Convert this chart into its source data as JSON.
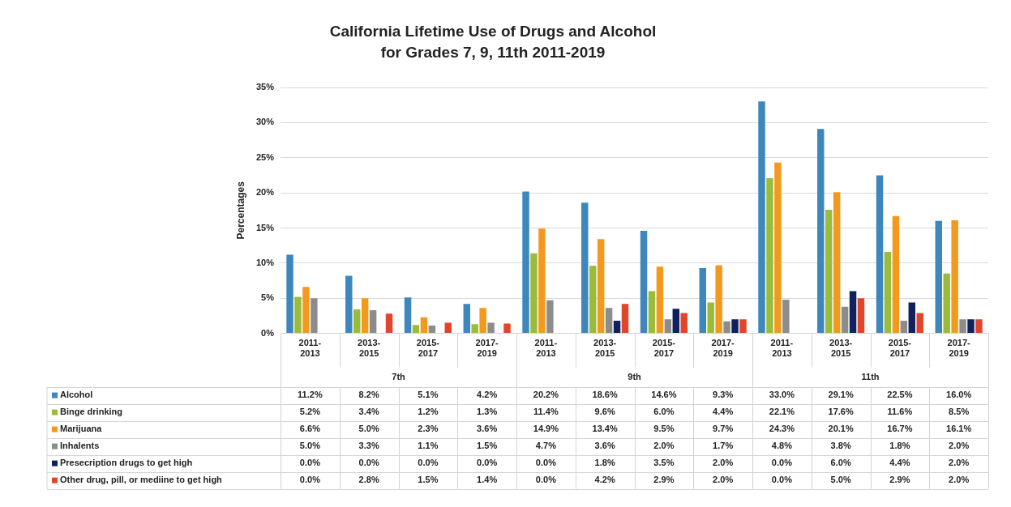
{
  "chart_data": {
    "type": "bar",
    "title": "California Lifetime Use of Drugs and Alcohol for Grades 7, 9, 11th 2011-2019",
    "ylabel": "Percentages",
    "categories": [
      "2011-2013",
      "2013-2015",
      "2015-2017",
      "2017-2019",
      "2011-2013",
      "2013-2015",
      "2015-2017",
      "2017-2019",
      "2011-2013",
      "2013-2015",
      "2015-2017",
      "2017-2019"
    ],
    "annotations": [
      "7th",
      "9th",
      "11th"
    ],
    "series": [
      {
        "name": "Alcohol",
        "color": "#3d87bd",
        "values": [
          11.2,
          8.2,
          5.1,
          4.2,
          20.2,
          18.6,
          14.6,
          9.3,
          33.0,
          29.1,
          22.5,
          16.0
        ],
        "value_labels": [
          "11.2%",
          "8.2%",
          "5.1%",
          "4.2%",
          "20.2%",
          "18.6%",
          "14.6%",
          "9.3%",
          "33.0%",
          "29.1%",
          "22.5%",
          "16.0%"
        ]
      },
      {
        "name": "Binge drinking",
        "color": "#9bbb3b",
        "values": [
          5.2,
          3.4,
          1.2,
          1.3,
          11.4,
          9.6,
          6.0,
          4.4,
          22.1,
          17.6,
          11.6,
          8.5
        ],
        "value_labels": [
          "5.2%",
          "3.4%",
          "1.2%",
          "1.3%",
          "11.4%",
          "9.6%",
          "6.0%",
          "4.4%",
          "22.1%",
          "17.6%",
          "11.6%",
          "8.5%"
        ]
      },
      {
        "name": "Marijuana",
        "color": "#f39a1e",
        "values": [
          6.6,
          5.0,
          2.3,
          3.6,
          14.9,
          13.4,
          9.5,
          9.7,
          24.3,
          20.1,
          16.7,
          16.1
        ],
        "value_labels": [
          "6.6%",
          "5.0%",
          "2.3%",
          "3.6%",
          "14.9%",
          "13.4%",
          "9.5%",
          "9.7%",
          "24.3%",
          "20.1%",
          "16.7%",
          "16.1%"
        ]
      },
      {
        "name": "Inhalents",
        "color": "#8c8c8c",
        "values": [
          5.0,
          3.3,
          1.1,
          1.5,
          4.7,
          3.6,
          2.0,
          1.7,
          4.8,
          3.8,
          1.8,
          2.0
        ],
        "value_labels": [
          "5.0%",
          "3.3%",
          "1.1%",
          "1.5%",
          "4.7%",
          "3.6%",
          "2.0%",
          "1.7%",
          "4.8%",
          "3.8%",
          "1.8%",
          "2.0%"
        ]
      },
      {
        "name": "Presecription drugs to get high",
        "color": "#10215e",
        "values": [
          0.0,
          0.0,
          0.0,
          0.0,
          0.0,
          1.8,
          3.5,
          2.0,
          0.0,
          6.0,
          4.4,
          2.0
        ],
        "value_labels": [
          "0.0%",
          "0.0%",
          "0.0%",
          "0.0%",
          "0.0%",
          "1.8%",
          "3.5%",
          "2.0%",
          "0.0%",
          "6.0%",
          "4.4%",
          "2.0%"
        ]
      },
      {
        "name": "Other drug, pill, or mediine to get high",
        "color": "#e0462b",
        "values": [
          0.0,
          2.8,
          1.5,
          1.4,
          0.0,
          4.2,
          2.9,
          2.0,
          0.0,
          5.0,
          2.9,
          2.0
        ],
        "value_labels": [
          "0.0%",
          "2.8%",
          "1.5%",
          "1.4%",
          "0.0%",
          "4.2%",
          "2.9%",
          "2.0%",
          "0.0%",
          "5.0%",
          "2.9%",
          "2.0%"
        ]
      }
    ],
    "ylim": [
      0,
      35
    ],
    "yticks": [
      {
        "value": 0,
        "label": "0%"
      },
      {
        "value": 5,
        "label": "5%"
      },
      {
        "value": 10,
        "label": "10%"
      },
      {
        "value": 15,
        "label": "15%"
      },
      {
        "value": 20,
        "label": "20%"
      },
      {
        "value": 25,
        "label": "25%"
      },
      {
        "value": 30,
        "label": "30%"
      },
      {
        "value": 35,
        "label": "35%"
      }
    ],
    "grid": "y",
    "legend": "bottom left"
  }
}
